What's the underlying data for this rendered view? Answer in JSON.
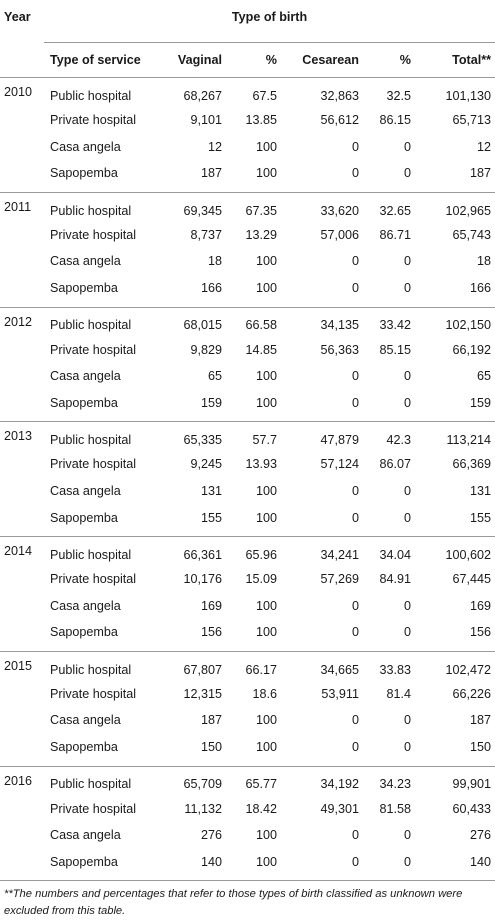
{
  "header": {
    "year_label": "Year",
    "group_label": "Type of birth",
    "columns": [
      "Type of service",
      "Vaginal",
      "%",
      "Cesarean",
      "%",
      "Total**"
    ]
  },
  "groups": [
    {
      "year": "2010",
      "rows": [
        [
          "Public hospital",
          "68,267",
          "67.5",
          "32,863",
          "32.5",
          "101,130"
        ],
        [
          "Private hospital",
          "9,101",
          "13.85",
          "56,612",
          "86.15",
          "65,713"
        ],
        [
          "Casa angela",
          "12",
          "100",
          "0",
          "0",
          "12"
        ],
        [
          "Sapopemba",
          "187",
          "100",
          "0",
          "0",
          "187"
        ]
      ]
    },
    {
      "year": "2011",
      "rows": [
        [
          "Public hospital",
          "69,345",
          "67.35",
          "33,620",
          "32.65",
          "102,965"
        ],
        [
          "Private hospital",
          "8,737",
          "13.29",
          "57,006",
          "86.71",
          "65,743"
        ],
        [
          "Casa angela",
          "18",
          "100",
          "0",
          "0",
          "18"
        ],
        [
          "Sapopemba",
          "166",
          "100",
          "0",
          "0",
          "166"
        ]
      ]
    },
    {
      "year": "2012",
      "rows": [
        [
          "Public hospital",
          "68,015",
          "66.58",
          "34,135",
          "33.42",
          "102,150"
        ],
        [
          "Private hospital",
          "9,829",
          "14.85",
          "56,363",
          "85.15",
          "66,192"
        ],
        [
          "Casa angela",
          "65",
          "100",
          "0",
          "0",
          "65"
        ],
        [
          "Sapopemba",
          "159",
          "100",
          "0",
          "0",
          "159"
        ]
      ]
    },
    {
      "year": "2013",
      "rows": [
        [
          "Public hospital",
          "65,335",
          "57.7",
          "47,879",
          "42.3",
          "113,214"
        ],
        [
          "Private hospital",
          "9,245",
          "13.93",
          "57,124",
          "86.07",
          "66,369"
        ],
        [
          "Casa angela",
          "131",
          "100",
          "0",
          "0",
          "131"
        ],
        [
          "Sapopemba",
          "155",
          "100",
          "0",
          "0",
          "155"
        ]
      ]
    },
    {
      "year": "2014",
      "rows": [
        [
          "Public hospital",
          "66,361",
          "65.96",
          "34,241",
          "34.04",
          "100,602"
        ],
        [
          "Private hospital",
          "10,176",
          "15.09",
          "57,269",
          "84.91",
          "67,445"
        ],
        [
          "Casa angela",
          "169",
          "100",
          "0",
          "0",
          "169"
        ],
        [
          "Sapopemba",
          "156",
          "100",
          "0",
          "0",
          "156"
        ]
      ]
    },
    {
      "year": "2015",
      "rows": [
        [
          "Public hospital",
          "67,807",
          "66.17",
          "34,665",
          "33.83",
          "102,472"
        ],
        [
          "Private hospital",
          "12,315",
          "18.6",
          "53,911",
          "81.4",
          "66,226"
        ],
        [
          "Casa angela",
          "187",
          "100",
          "0",
          "0",
          "187"
        ],
        [
          "Sapopemba",
          "150",
          "100",
          "0",
          "0",
          "150"
        ]
      ]
    },
    {
      "year": "2016",
      "rows": [
        [
          "Public hospital",
          "65,709",
          "65.77",
          "34,192",
          "34.23",
          "99,901"
        ],
        [
          "Private hospital",
          "11,132",
          "18.42",
          "49,301",
          "81.58",
          "60,433"
        ],
        [
          "Casa angela",
          "276",
          "100",
          "0",
          "0",
          "276"
        ],
        [
          "Sapopemba",
          "140",
          "100",
          "0",
          "0",
          "140"
        ]
      ]
    }
  ],
  "footnote": "**The numbers and percentages that refer to those types of birth classified as unknown were excluded from this table."
}
